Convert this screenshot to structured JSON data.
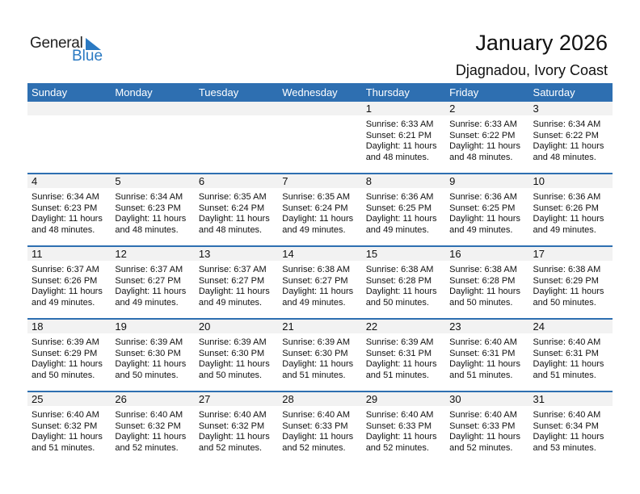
{
  "logo": {
    "general": "General",
    "blue": "Blue"
  },
  "title": "January 2026",
  "location": "Djagnadou, Ivory Coast",
  "colors": {
    "header": "#2e6fb1",
    "strip": "#f2f2f2",
    "logo_blue": "#2a79c2"
  },
  "weekdays": [
    "Sunday",
    "Monday",
    "Tuesday",
    "Wednesday",
    "Thursday",
    "Friday",
    "Saturday"
  ],
  "weeks": [
    [
      null,
      null,
      null,
      null,
      {
        "day": "1",
        "sunrise": "Sunrise: 6:33 AM",
        "sunset": "Sunset: 6:21 PM",
        "daylight": "Daylight: 11 hours",
        "minutes": "and 48 minutes."
      },
      {
        "day": "2",
        "sunrise": "Sunrise: 6:33 AM",
        "sunset": "Sunset: 6:22 PM",
        "daylight": "Daylight: 11 hours",
        "minutes": "and 48 minutes."
      },
      {
        "day": "3",
        "sunrise": "Sunrise: 6:34 AM",
        "sunset": "Sunset: 6:22 PM",
        "daylight": "Daylight: 11 hours",
        "minutes": "and 48 minutes."
      }
    ],
    [
      {
        "day": "4",
        "sunrise": "Sunrise: 6:34 AM",
        "sunset": "Sunset: 6:23 PM",
        "daylight": "Daylight: 11 hours",
        "minutes": "and 48 minutes."
      },
      {
        "day": "5",
        "sunrise": "Sunrise: 6:34 AM",
        "sunset": "Sunset: 6:23 PM",
        "daylight": "Daylight: 11 hours",
        "minutes": "and 48 minutes."
      },
      {
        "day": "6",
        "sunrise": "Sunrise: 6:35 AM",
        "sunset": "Sunset: 6:24 PM",
        "daylight": "Daylight: 11 hours",
        "minutes": "and 48 minutes."
      },
      {
        "day": "7",
        "sunrise": "Sunrise: 6:35 AM",
        "sunset": "Sunset: 6:24 PM",
        "daylight": "Daylight: 11 hours",
        "minutes": "and 49 minutes."
      },
      {
        "day": "8",
        "sunrise": "Sunrise: 6:36 AM",
        "sunset": "Sunset: 6:25 PM",
        "daylight": "Daylight: 11 hours",
        "minutes": "and 49 minutes."
      },
      {
        "day": "9",
        "sunrise": "Sunrise: 6:36 AM",
        "sunset": "Sunset: 6:25 PM",
        "daylight": "Daylight: 11 hours",
        "minutes": "and 49 minutes."
      },
      {
        "day": "10",
        "sunrise": "Sunrise: 6:36 AM",
        "sunset": "Sunset: 6:26 PM",
        "daylight": "Daylight: 11 hours",
        "minutes": "and 49 minutes."
      }
    ],
    [
      {
        "day": "11",
        "sunrise": "Sunrise: 6:37 AM",
        "sunset": "Sunset: 6:26 PM",
        "daylight": "Daylight: 11 hours",
        "minutes": "and 49 minutes."
      },
      {
        "day": "12",
        "sunrise": "Sunrise: 6:37 AM",
        "sunset": "Sunset: 6:27 PM",
        "daylight": "Daylight: 11 hours",
        "minutes": "and 49 minutes."
      },
      {
        "day": "13",
        "sunrise": "Sunrise: 6:37 AM",
        "sunset": "Sunset: 6:27 PM",
        "daylight": "Daylight: 11 hours",
        "minutes": "and 49 minutes."
      },
      {
        "day": "14",
        "sunrise": "Sunrise: 6:38 AM",
        "sunset": "Sunset: 6:27 PM",
        "daylight": "Daylight: 11 hours",
        "minutes": "and 49 minutes."
      },
      {
        "day": "15",
        "sunrise": "Sunrise: 6:38 AM",
        "sunset": "Sunset: 6:28 PM",
        "daylight": "Daylight: 11 hours",
        "minutes": "and 50 minutes."
      },
      {
        "day": "16",
        "sunrise": "Sunrise: 6:38 AM",
        "sunset": "Sunset: 6:28 PM",
        "daylight": "Daylight: 11 hours",
        "minutes": "and 50 minutes."
      },
      {
        "day": "17",
        "sunrise": "Sunrise: 6:38 AM",
        "sunset": "Sunset: 6:29 PM",
        "daylight": "Daylight: 11 hours",
        "minutes": "and 50 minutes."
      }
    ],
    [
      {
        "day": "18",
        "sunrise": "Sunrise: 6:39 AM",
        "sunset": "Sunset: 6:29 PM",
        "daylight": "Daylight: 11 hours",
        "minutes": "and 50 minutes."
      },
      {
        "day": "19",
        "sunrise": "Sunrise: 6:39 AM",
        "sunset": "Sunset: 6:30 PM",
        "daylight": "Daylight: 11 hours",
        "minutes": "and 50 minutes."
      },
      {
        "day": "20",
        "sunrise": "Sunrise: 6:39 AM",
        "sunset": "Sunset: 6:30 PM",
        "daylight": "Daylight: 11 hours",
        "minutes": "and 50 minutes."
      },
      {
        "day": "21",
        "sunrise": "Sunrise: 6:39 AM",
        "sunset": "Sunset: 6:30 PM",
        "daylight": "Daylight: 11 hours",
        "minutes": "and 51 minutes."
      },
      {
        "day": "22",
        "sunrise": "Sunrise: 6:39 AM",
        "sunset": "Sunset: 6:31 PM",
        "daylight": "Daylight: 11 hours",
        "minutes": "and 51 minutes."
      },
      {
        "day": "23",
        "sunrise": "Sunrise: 6:40 AM",
        "sunset": "Sunset: 6:31 PM",
        "daylight": "Daylight: 11 hours",
        "minutes": "and 51 minutes."
      },
      {
        "day": "24",
        "sunrise": "Sunrise: 6:40 AM",
        "sunset": "Sunset: 6:31 PM",
        "daylight": "Daylight: 11 hours",
        "minutes": "and 51 minutes."
      }
    ],
    [
      {
        "day": "25",
        "sunrise": "Sunrise: 6:40 AM",
        "sunset": "Sunset: 6:32 PM",
        "daylight": "Daylight: 11 hours",
        "minutes": "and 51 minutes."
      },
      {
        "day": "26",
        "sunrise": "Sunrise: 6:40 AM",
        "sunset": "Sunset: 6:32 PM",
        "daylight": "Daylight: 11 hours",
        "minutes": "and 52 minutes."
      },
      {
        "day": "27",
        "sunrise": "Sunrise: 6:40 AM",
        "sunset": "Sunset: 6:32 PM",
        "daylight": "Daylight: 11 hours",
        "minutes": "and 52 minutes."
      },
      {
        "day": "28",
        "sunrise": "Sunrise: 6:40 AM",
        "sunset": "Sunset: 6:33 PM",
        "daylight": "Daylight: 11 hours",
        "minutes": "and 52 minutes."
      },
      {
        "day": "29",
        "sunrise": "Sunrise: 6:40 AM",
        "sunset": "Sunset: 6:33 PM",
        "daylight": "Daylight: 11 hours",
        "minutes": "and 52 minutes."
      },
      {
        "day": "30",
        "sunrise": "Sunrise: 6:40 AM",
        "sunset": "Sunset: 6:33 PM",
        "daylight": "Daylight: 11 hours",
        "minutes": "and 52 minutes."
      },
      {
        "day": "31",
        "sunrise": "Sunrise: 6:40 AM",
        "sunset": "Sunset: 6:34 PM",
        "daylight": "Daylight: 11 hours",
        "minutes": "and 53 minutes."
      }
    ]
  ]
}
